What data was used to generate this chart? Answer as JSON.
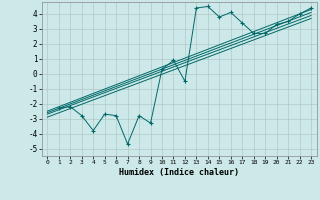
{
  "title": "",
  "xlabel": "Humidex (Indice chaleur)",
  "background_color": "#cce8e8",
  "grid_color": "#b0c8c8",
  "line_color": "#006868",
  "xlim": [
    -0.5,
    23.5
  ],
  "ylim": [
    -5.5,
    4.8
  ],
  "yticks": [
    -5,
    -4,
    -3,
    -2,
    -1,
    0,
    1,
    2,
    3,
    4
  ],
  "xticks": [
    0,
    1,
    2,
    3,
    4,
    5,
    6,
    7,
    8,
    9,
    10,
    11,
    12,
    13,
    14,
    15,
    16,
    17,
    18,
    19,
    20,
    21,
    22,
    23
  ],
  "scatter_x": [
    1,
    2,
    3,
    4,
    5,
    6,
    7,
    8,
    9,
    10,
    11,
    12,
    13,
    14,
    15,
    16,
    17,
    18,
    19,
    20,
    21,
    22,
    23
  ],
  "scatter_y": [
    -2.3,
    -2.2,
    -2.8,
    -3.8,
    -2.7,
    -2.8,
    -4.7,
    -2.8,
    -3.3,
    0.3,
    0.9,
    -0.5,
    4.4,
    4.5,
    3.8,
    4.1,
    3.4,
    2.7,
    2.7,
    3.3,
    3.5,
    4.0,
    4.4
  ],
  "reg_lines": [
    {
      "x": [
        0,
        23
      ],
      "y": [
        -2.5,
        4.3
      ]
    },
    {
      "x": [
        0,
        23
      ],
      "y": [
        -2.6,
        4.1
      ]
    },
    {
      "x": [
        0,
        23
      ],
      "y": [
        -2.7,
        3.9
      ]
    },
    {
      "x": [
        0,
        23
      ],
      "y": [
        -2.9,
        3.7
      ]
    }
  ]
}
